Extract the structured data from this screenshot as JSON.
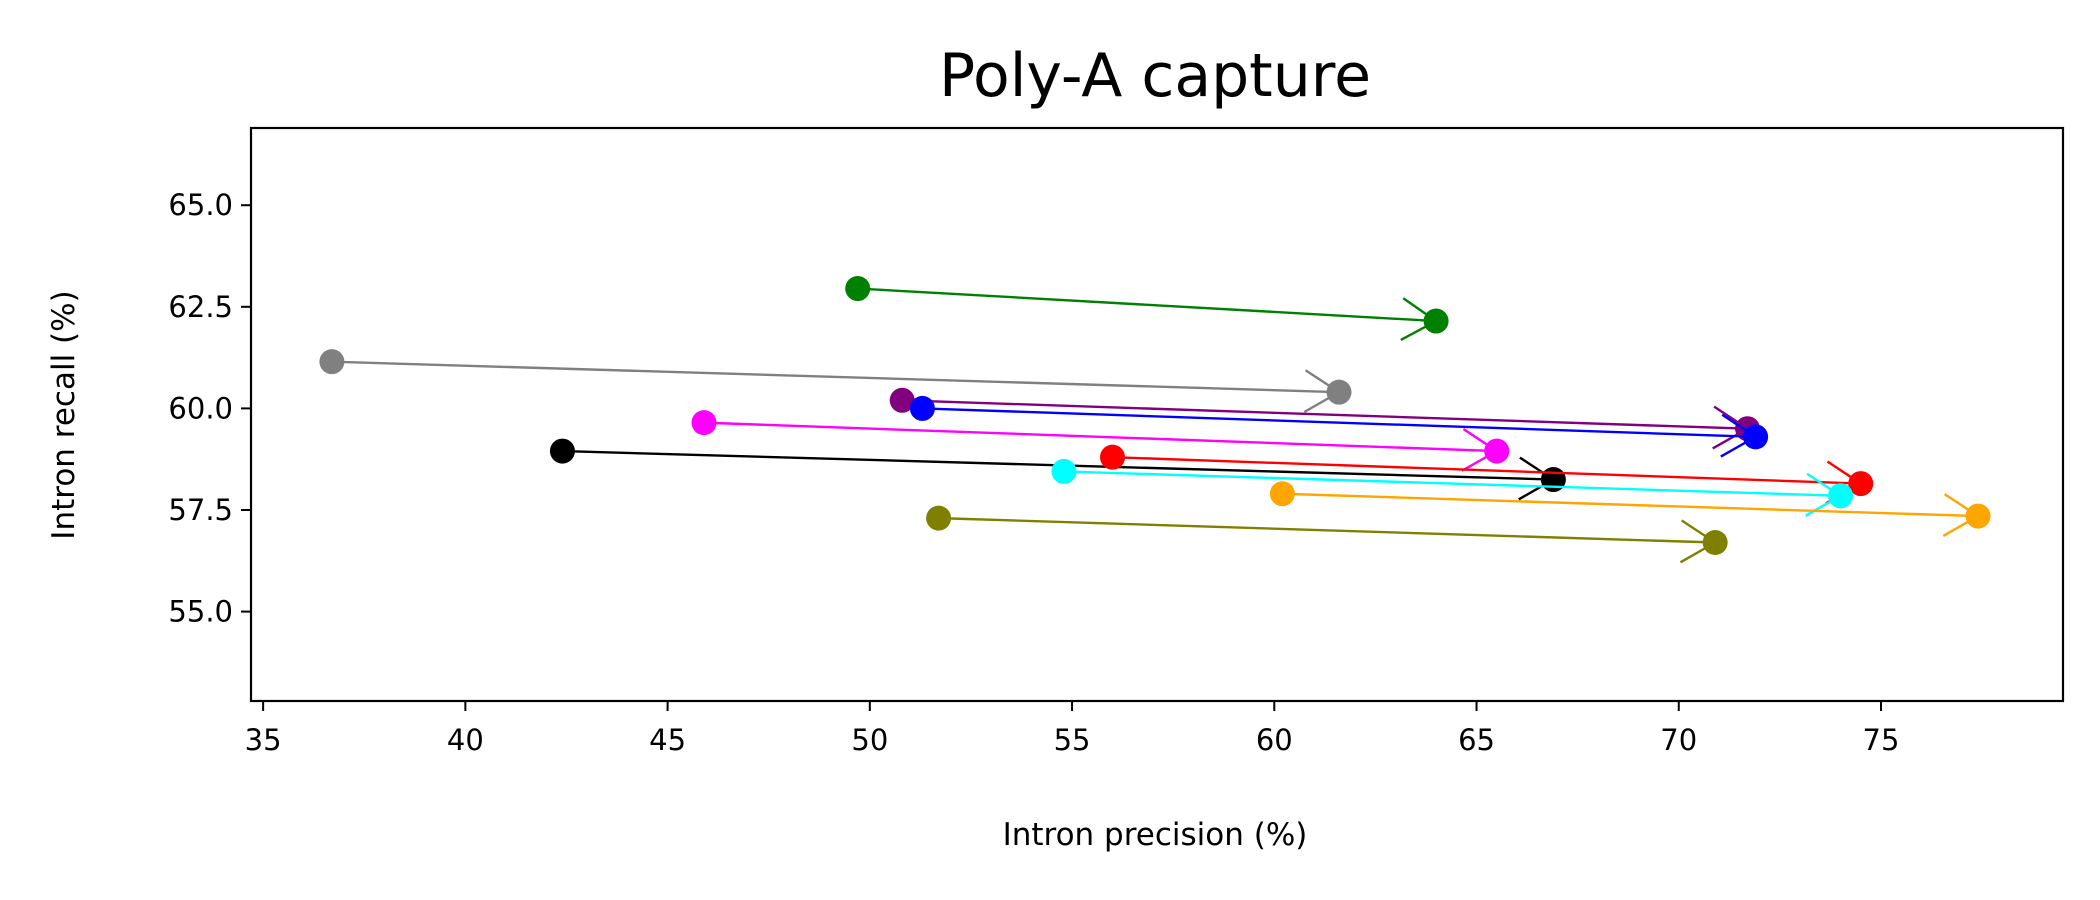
{
  "chart_data": {
    "type": "scatter",
    "title": "Poly-A capture",
    "xlabel": "Intron precision (%)",
    "ylabel": "Intron recall (%)",
    "xlim": [
      34.7,
      79.5
    ],
    "ylim": [
      52.8,
      66.9
    ],
    "x_ticks": [
      35,
      40,
      45,
      50,
      55,
      60,
      65,
      70,
      75
    ],
    "x_tick_labels": [
      "35",
      "40",
      "45",
      "50",
      "55",
      "60",
      "65",
      "70",
      "75"
    ],
    "y_ticks": [
      55.0,
      57.5,
      60.0,
      62.5,
      65.0
    ],
    "y_tick_labels": [
      "55.0",
      "57.5",
      "60.0",
      "62.5",
      "65.0"
    ],
    "grid": false,
    "series": [
      {
        "color": "#008000",
        "from": [
          49.7,
          62.95
        ],
        "to": [
          64.0,
          62.15
        ]
      },
      {
        "color": "#808080",
        "from": [
          36.7,
          61.15
        ],
        "to": [
          61.6,
          60.4
        ]
      },
      {
        "color": "#800080",
        "from": [
          50.8,
          60.2
        ],
        "to": [
          71.7,
          59.5
        ]
      },
      {
        "color": "#0000ff",
        "from": [
          51.3,
          60.0
        ],
        "to": [
          71.9,
          59.3
        ]
      },
      {
        "color": "#ff00ff",
        "from": [
          45.9,
          59.65
        ],
        "to": [
          65.5,
          58.95
        ]
      },
      {
        "color": "#000000",
        "from": [
          42.4,
          58.95
        ],
        "to": [
          66.9,
          58.25
        ]
      },
      {
        "color": "#ff0000",
        "from": [
          56.0,
          58.8
        ],
        "to": [
          74.5,
          58.15
        ]
      },
      {
        "color": "#00ffff",
        "from": [
          54.8,
          58.45
        ],
        "to": [
          74.0,
          57.85
        ]
      },
      {
        "color": "#ffa500",
        "from": [
          60.2,
          57.9
        ],
        "to": [
          77.4,
          57.35
        ]
      },
      {
        "color": "#808000",
        "from": [
          51.7,
          57.3
        ],
        "to": [
          70.9,
          56.7
        ]
      }
    ]
  }
}
